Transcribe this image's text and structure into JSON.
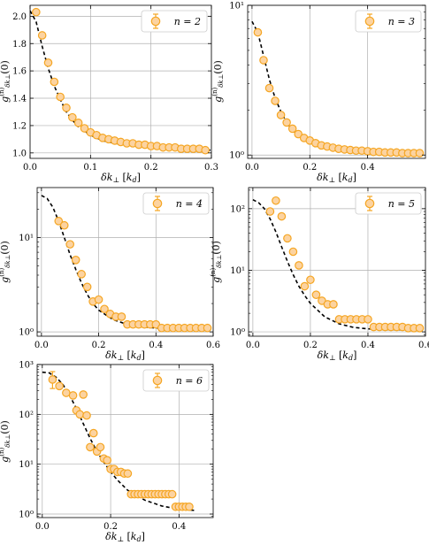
{
  "marker_face": "#fcd3a0",
  "marker_edge": "#f5a623",
  "fit_color": "#000000",
  "chart_data": [
    {
      "type": "scatter",
      "legend_label": "n = 2",
      "legend_loc": "top-right",
      "xlabel": "δk⊥ [kd]",
      "ylabel": "g(n)δk⊥(0)",
      "xscale": "linear",
      "yscale": "linear",
      "xlim": [
        0,
        0.3
      ],
      "ylim": [
        0.96,
        2.08
      ],
      "xticks": [
        0.0,
        0.1,
        0.2,
        0.3
      ],
      "xticklabels": [
        "0.0",
        "0.1",
        "0.2",
        "0.3"
      ],
      "yticks": [
        1.0,
        1.2,
        1.4,
        1.6,
        1.8,
        2.0
      ],
      "yticklabels": [
        "1.0",
        "1.2",
        "1.4",
        "1.6",
        "1.8",
        "2.0"
      ],
      "grid": true,
      "x": [
        0.01,
        0.02,
        0.03,
        0.04,
        0.05,
        0.06,
        0.07,
        0.08,
        0.09,
        0.1,
        0.11,
        0.12,
        0.13,
        0.14,
        0.15,
        0.16,
        0.17,
        0.18,
        0.19,
        0.2,
        0.21,
        0.22,
        0.23,
        0.24,
        0.25,
        0.26,
        0.27,
        0.28,
        0.29
      ],
      "y": [
        2.03,
        1.86,
        1.66,
        1.52,
        1.41,
        1.33,
        1.26,
        1.22,
        1.18,
        1.15,
        1.13,
        1.11,
        1.1,
        1.09,
        1.08,
        1.07,
        1.07,
        1.06,
        1.06,
        1.05,
        1.05,
        1.04,
        1.04,
        1.04,
        1.03,
        1.03,
        1.03,
        1.03,
        1.02
      ],
      "fit_x": [
        0.0,
        0.01,
        0.02,
        0.03,
        0.04,
        0.05,
        0.06,
        0.07,
        0.08,
        0.09,
        0.1,
        0.12,
        0.14,
        0.16,
        0.18,
        0.2,
        0.22,
        0.24,
        0.26,
        0.28,
        0.3
      ],
      "fit_y": [
        2.04,
        1.96,
        1.78,
        1.62,
        1.49,
        1.39,
        1.3,
        1.24,
        1.19,
        1.16,
        1.13,
        1.09,
        1.07,
        1.06,
        1.05,
        1.04,
        1.03,
        1.03,
        1.02,
        1.02,
        1.02
      ]
    },
    {
      "type": "scatter",
      "legend_label": "n = 3",
      "legend_loc": "top-right",
      "xlabel": "δk⊥ [kd]",
      "ylabel": "g(n)δk⊥(0)",
      "xscale": "linear",
      "yscale": "log",
      "xlim": [
        -0.015,
        0.6
      ],
      "ylim": [
        0.95,
        10
      ],
      "xticks": [
        0.0,
        0.2,
        0.4
      ],
      "xticklabels": [
        "0.0",
        "0.2",
        "0.4"
      ],
      "yticks": [
        1,
        10
      ],
      "yticklabels": [
        "10⁰",
        "10¹"
      ],
      "grid": true,
      "x": [
        0.02,
        0.04,
        0.06,
        0.08,
        0.1,
        0.12,
        0.14,
        0.16,
        0.18,
        0.2,
        0.22,
        0.24,
        0.26,
        0.28,
        0.3,
        0.32,
        0.34,
        0.36,
        0.38,
        0.4,
        0.42,
        0.44,
        0.46,
        0.48,
        0.5,
        0.52,
        0.54,
        0.56,
        0.58
      ],
      "y": [
        6.6,
        4.3,
        2.8,
        2.3,
        1.85,
        1.65,
        1.5,
        1.38,
        1.3,
        1.25,
        1.2,
        1.16,
        1.14,
        1.12,
        1.1,
        1.09,
        1.08,
        1.07,
        1.07,
        1.06,
        1.05,
        1.05,
        1.04,
        1.04,
        1.04,
        1.03,
        1.03,
        1.03,
        1.03
      ],
      "fit_x": [
        0.0,
        0.02,
        0.04,
        0.06,
        0.08,
        0.1,
        0.12,
        0.14,
        0.16,
        0.18,
        0.2,
        0.25,
        0.3,
        0.35,
        0.4,
        0.45,
        0.5,
        0.55,
        0.58
      ],
      "fit_y": [
        7.8,
        6.6,
        4.6,
        3.2,
        2.4,
        1.95,
        1.65,
        1.47,
        1.35,
        1.27,
        1.21,
        1.13,
        1.09,
        1.07,
        1.05,
        1.04,
        1.04,
        1.03,
        1.03
      ]
    },
    {
      "type": "scatter",
      "legend_label": "n = 4",
      "legend_loc": "top-right",
      "xlabel": "δk⊥ [kd]",
      "ylabel": "g(n)δk⊥(0)",
      "xscale": "linear",
      "yscale": "log",
      "xlim": [
        -0.015,
        0.6
      ],
      "ylim": [
        0.9,
        34
      ],
      "xticks": [
        0.0,
        0.2,
        0.4,
        0.6
      ],
      "xticklabels": [
        "0.0",
        "0.2",
        "0.4",
        "0.6"
      ],
      "yticks": [
        1,
        10
      ],
      "yticklabels": [
        "10⁰",
        "10¹"
      ],
      "grid": true,
      "x": [
        0.06,
        0.08,
        0.1,
        0.12,
        0.14,
        0.16,
        0.18,
        0.2,
        0.22,
        0.24,
        0.26,
        0.28,
        0.3,
        0.32,
        0.34,
        0.36,
        0.38,
        0.4,
        0.42,
        0.44,
        0.46,
        0.48,
        0.5,
        0.52,
        0.54,
        0.56,
        0.58
      ],
      "y": [
        15,
        13.5,
        8.5,
        5.8,
        4.1,
        3.0,
        2.1,
        2.2,
        1.75,
        1.55,
        1.45,
        1.45,
        1.2,
        1.2,
        1.2,
        1.2,
        1.2,
        1.2,
        1.1,
        1.1,
        1.1,
        1.1,
        1.1,
        1.1,
        1.1,
        1.1,
        1.1
      ],
      "fit_x": [
        0.0,
        0.02,
        0.04,
        0.06,
        0.08,
        0.1,
        0.12,
        0.14,
        0.16,
        0.18,
        0.2,
        0.25,
        0.3,
        0.35,
        0.4,
        0.45,
        0.5,
        0.55,
        0.58
      ],
      "fit_y": [
        28,
        26,
        21,
        15,
        10,
        6.6,
        4.6,
        3.3,
        2.5,
        2.0,
        1.7,
        1.35,
        1.2,
        1.13,
        1.1,
        1.08,
        1.07,
        1.06,
        1.06
      ]
    },
    {
      "type": "scatter",
      "legend_label": "n = 5",
      "legend_loc": "top-right",
      "xlabel": "δk⊥ [kd]",
      "ylabel": "g(n)δk⊥(0)",
      "xscale": "linear",
      "yscale": "log",
      "xlim": [
        -0.015,
        0.6
      ],
      "ylim": [
        0.85,
        220
      ],
      "xticks": [
        0.0,
        0.2,
        0.4,
        0.6
      ],
      "xticklabels": [
        "0.0",
        "0.2",
        "0.4",
        "0.6"
      ],
      "yticks": [
        1,
        10,
        100
      ],
      "yticklabels": [
        "10⁰",
        "10¹",
        "10²"
      ],
      "grid": true,
      "x": [
        0.06,
        0.08,
        0.1,
        0.12,
        0.14,
        0.16,
        0.18,
        0.2,
        0.22,
        0.24,
        0.26,
        0.28,
        0.3,
        0.32,
        0.34,
        0.36,
        0.38,
        0.4,
        0.42,
        0.44,
        0.46,
        0.48,
        0.5,
        0.52,
        0.54,
        0.56,
        0.58
      ],
      "y": [
        90,
        135,
        75,
        33,
        20,
        12,
        5.5,
        7,
        4,
        3.2,
        2.8,
        2.8,
        1.6,
        1.6,
        1.6,
        1.6,
        1.6,
        1.6,
        1.2,
        1.2,
        1.2,
        1.2,
        1.2,
        1.2,
        1.15,
        1.15,
        1.15
      ],
      "fit_x": [
        0.0,
        0.02,
        0.04,
        0.06,
        0.08,
        0.1,
        0.12,
        0.14,
        0.16,
        0.18,
        0.2,
        0.25,
        0.3,
        0.35,
        0.4,
        0.45,
        0.5,
        0.55,
        0.58
      ],
      "fit_y": [
        140,
        125,
        100,
        68,
        42,
        24,
        14,
        8.5,
        5.5,
        3.9,
        2.9,
        1.75,
        1.35,
        1.18,
        1.12,
        1.09,
        1.08,
        1.07,
        1.07
      ]
    },
    {
      "type": "scatter",
      "legend_label": "n = 6",
      "legend_loc": "top-right",
      "xlabel": "δk⊥ [kd]",
      "ylabel": "g(n)δk⊥(0)",
      "xscale": "linear",
      "yscale": "log",
      "xlim": [
        -0.015,
        0.5
      ],
      "ylim": [
        0.85,
        1000
      ],
      "xticks": [
        0.0,
        0.2,
        0.4
      ],
      "xticklabels": [
        "0.0",
        "0.2",
        "0.4"
      ],
      "yticks": [
        1,
        10,
        100,
        1000
      ],
      "yticklabels": [
        "10⁰",
        "10¹",
        "10²",
        "10³"
      ],
      "grid": true,
      "x": [
        0.03,
        0.05,
        0.07,
        0.09,
        0.1,
        0.11,
        0.12,
        0.13,
        0.14,
        0.15,
        0.16,
        0.17,
        0.18,
        0.19,
        0.2,
        0.21,
        0.22,
        0.23,
        0.24,
        0.25,
        0.26,
        0.27,
        0.28,
        0.29,
        0.3,
        0.31,
        0.32,
        0.33,
        0.34,
        0.35,
        0.36,
        0.37,
        0.38,
        0.39,
        0.4,
        0.41,
        0.42,
        0.43
      ],
      "y": [
        500,
        370,
        270,
        240,
        120,
        100,
        250,
        95,
        22,
        42,
        18,
        22,
        13,
        12,
        8,
        8,
        7,
        7,
        6.5,
        6.5,
        2.5,
        2.5,
        2.5,
        2.5,
        2.5,
        2.5,
        2.5,
        2.5,
        2.5,
        2.5,
        2.5,
        2.5,
        2.5,
        1.4,
        1.4,
        1.4,
        1.4,
        1.4
      ],
      "yerr_index": [
        0
      ],
      "yerr": [
        [
          330,
          720
        ]
      ],
      "fit_x": [
        0.0,
        0.02,
        0.04,
        0.06,
        0.08,
        0.1,
        0.12,
        0.14,
        0.16,
        0.18,
        0.2,
        0.22,
        0.25,
        0.3,
        0.35,
        0.4,
        0.45
      ],
      "fit_y": [
        700,
        680,
        560,
        400,
        240,
        130,
        65,
        33,
        18,
        11,
        7,
        4.8,
        3,
        1.9,
        1.45,
        1.25,
        1.18
      ]
    }
  ]
}
